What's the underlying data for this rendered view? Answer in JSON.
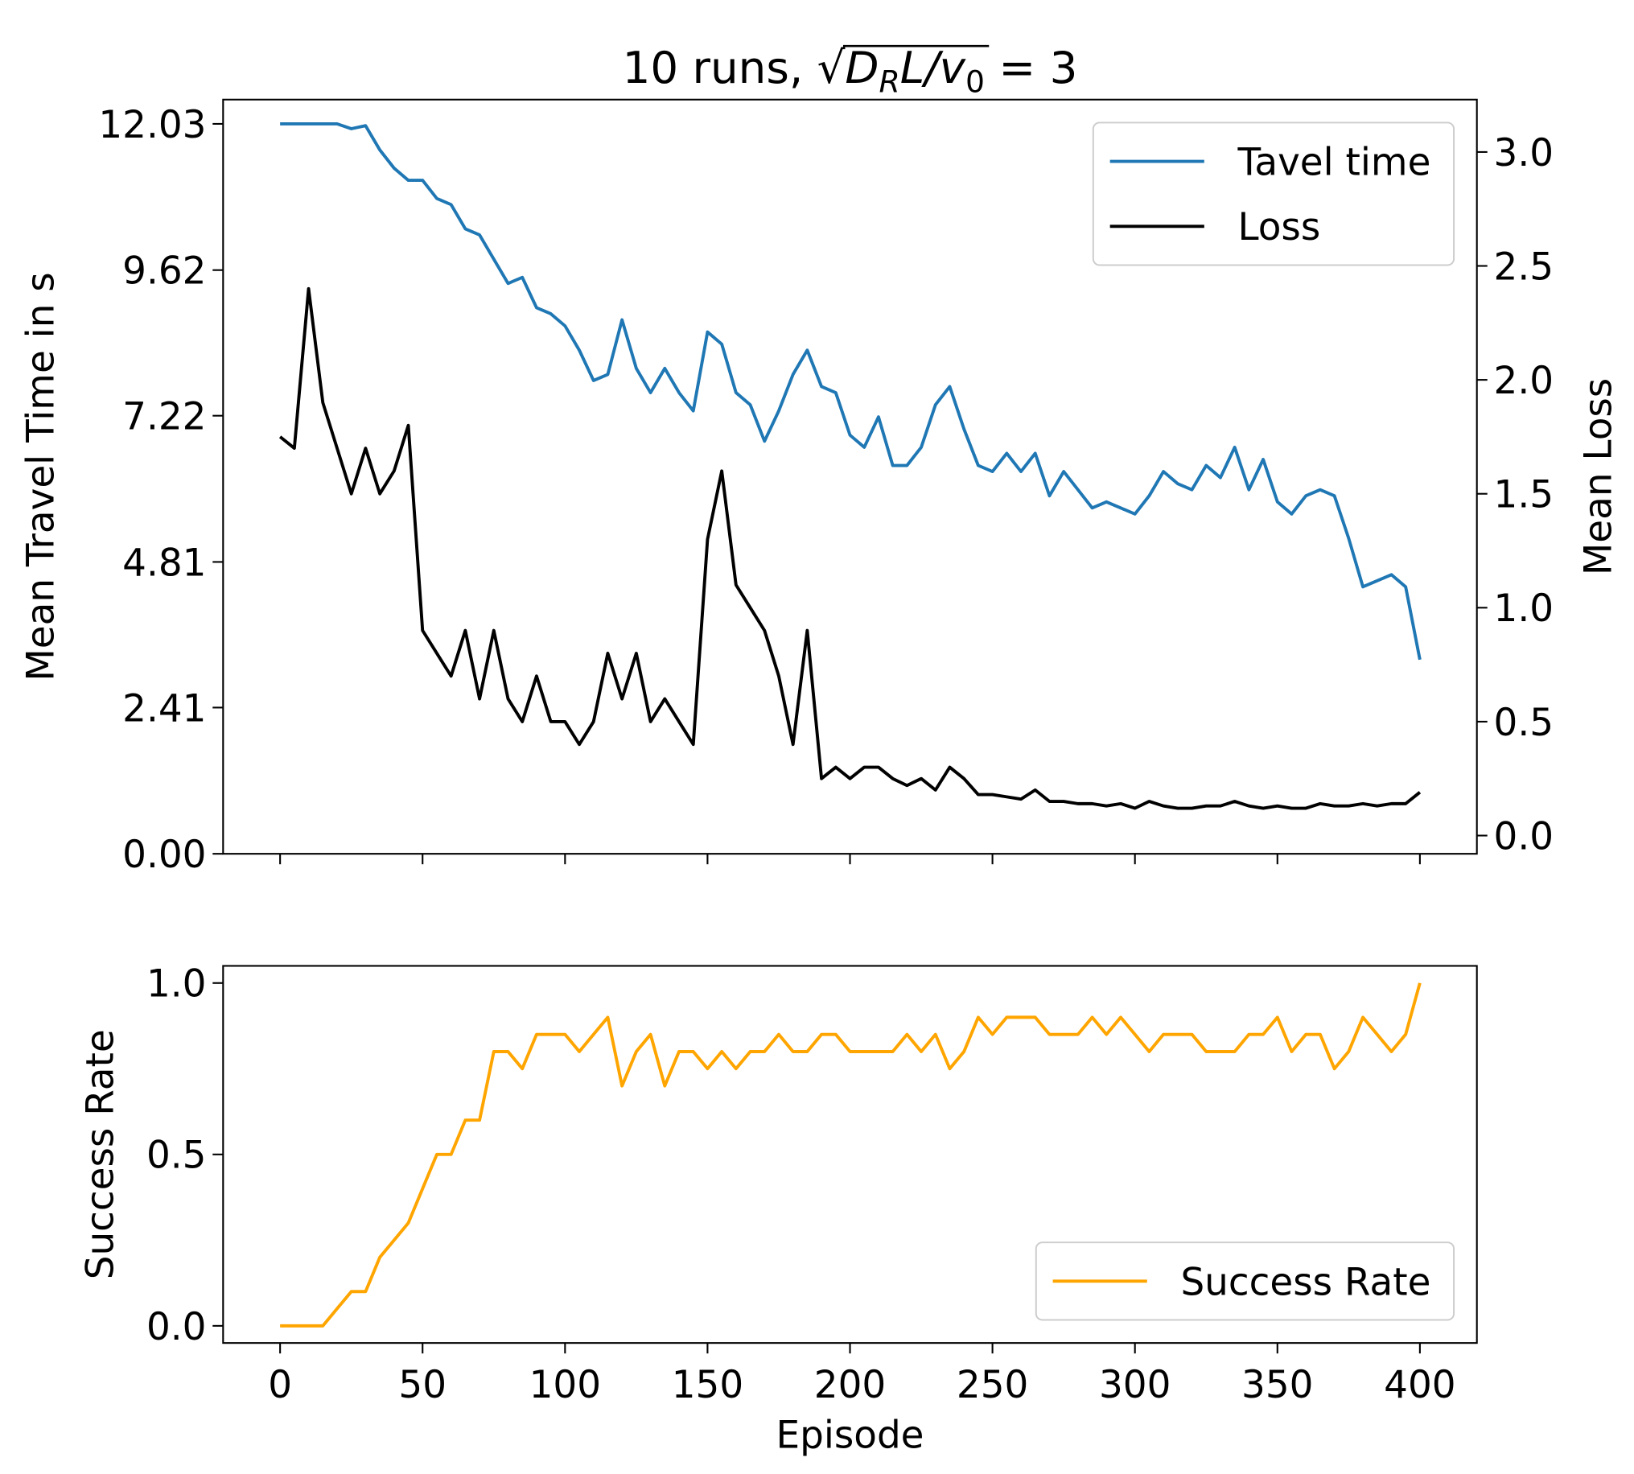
{
  "chart_data": [
    {
      "type": "line",
      "title": [
        "10 runs, ",
        "√",
        "D",
        "R",
        "L/v",
        "0",
        " = 3"
      ],
      "ylabel": "Mean Travel Time in s",
      "y2label": "Mean Loss",
      "x": [
        0,
        5,
        10,
        15,
        20,
        25,
        30,
        35,
        40,
        45,
        50,
        55,
        60,
        65,
        70,
        75,
        80,
        85,
        90,
        95,
        100,
        105,
        110,
        115,
        120,
        125,
        130,
        135,
        140,
        145,
        150,
        155,
        160,
        165,
        170,
        175,
        180,
        185,
        190,
        195,
        200,
        205,
        210,
        215,
        220,
        225,
        230,
        235,
        240,
        245,
        250,
        255,
        260,
        265,
        270,
        275,
        280,
        285,
        290,
        295,
        300,
        305,
        310,
        315,
        320,
        325,
        330,
        335,
        340,
        345,
        350,
        355,
        360,
        365,
        370,
        375,
        380,
        385,
        390,
        395,
        400
      ],
      "series": [
        {
          "name": "Tavel time",
          "color": "#1f77b4",
          "axis": "y",
          "values": [
            12.03,
            12.03,
            12.03,
            12.03,
            12.03,
            11.95,
            12.0,
            11.6,
            11.3,
            11.1,
            11.1,
            10.8,
            10.7,
            10.3,
            10.2,
            9.8,
            9.4,
            9.5,
            9.0,
            8.9,
            8.7,
            8.3,
            7.8,
            7.9,
            8.8,
            8.0,
            7.6,
            8.0,
            7.6,
            7.3,
            8.6,
            8.4,
            7.6,
            7.4,
            6.8,
            7.3,
            7.9,
            8.3,
            7.7,
            7.6,
            6.9,
            6.7,
            7.2,
            6.4,
            6.4,
            6.7,
            7.4,
            7.7,
            7.0,
            6.4,
            6.3,
            6.6,
            6.3,
            6.6,
            5.9,
            6.3,
            6.0,
            5.7,
            5.8,
            5.7,
            5.6,
            5.9,
            6.3,
            6.1,
            6.0,
            6.4,
            6.2,
            6.7,
            6.0,
            6.5,
            5.8,
            5.6,
            5.9,
            6.0,
            5.9,
            5.2,
            4.4,
            4.5,
            4.6,
            4.4,
            3.2
          ]
        },
        {
          "name": "Loss",
          "color": "#000000",
          "axis": "y2",
          "values": [
            1.75,
            1.7,
            2.4,
            1.9,
            1.7,
            1.5,
            1.7,
            1.5,
            1.6,
            1.8,
            0.9,
            0.8,
            0.7,
            0.9,
            0.6,
            0.9,
            0.6,
            0.5,
            0.7,
            0.5,
            0.5,
            0.4,
            0.5,
            0.8,
            0.6,
            0.8,
            0.5,
            0.6,
            0.5,
            0.4,
            1.3,
            1.6,
            1.1,
            1.0,
            0.9,
            0.7,
            0.4,
            0.9,
            0.25,
            0.3,
            0.25,
            0.3,
            0.3,
            0.25,
            0.22,
            0.25,
            0.2,
            0.3,
            0.25,
            0.18,
            0.18,
            0.17,
            0.16,
            0.2,
            0.15,
            0.15,
            0.14,
            0.14,
            0.13,
            0.14,
            0.12,
            0.15,
            0.13,
            0.12,
            0.12,
            0.13,
            0.13,
            0.15,
            0.13,
            0.12,
            0.13,
            0.12,
            0.12,
            0.14,
            0.13,
            0.13,
            0.14,
            0.13,
            0.14,
            0.14,
            0.19
          ]
        }
      ],
      "xlim": [
        -20,
        420
      ],
      "xticks": [
        0,
        50,
        100,
        150,
        200,
        250,
        300,
        350,
        400
      ],
      "ylim": [
        0,
        12.43
      ],
      "yticks": [
        {
          "value": 0,
          "label": "0.00"
        },
        2.41,
        4.81,
        7.22,
        9.62,
        12.03
      ],
      "y2lim": [
        -0.08,
        3.23
      ],
      "y2ticks": [
        {
          "value": 0,
          "label": "0.0"
        },
        0.5,
        {
          "value": 1,
          "label": "1.0"
        },
        1.5,
        {
          "value": 2,
          "label": "2.0"
        },
        2.5,
        {
          "value": 3,
          "label": "3.0"
        }
      ],
      "legend": "upper right"
    },
    {
      "type": "line",
      "ylabel": "Success Rate",
      "xlabel": "Episode",
      "x": [
        0,
        5,
        10,
        15,
        20,
        25,
        30,
        35,
        40,
        45,
        50,
        55,
        60,
        65,
        70,
        75,
        80,
        85,
        90,
        95,
        100,
        105,
        110,
        115,
        120,
        125,
        130,
        135,
        140,
        145,
        150,
        155,
        160,
        165,
        170,
        175,
        180,
        185,
        190,
        195,
        200,
        205,
        210,
        215,
        220,
        225,
        230,
        235,
        240,
        245,
        250,
        255,
        260,
        265,
        270,
        275,
        280,
        285,
        290,
        295,
        300,
        305,
        310,
        315,
        320,
        325,
        330,
        335,
        340,
        345,
        350,
        355,
        360,
        365,
        370,
        375,
        380,
        385,
        390,
        395,
        400
      ],
      "series": [
        {
          "name": "Success Rate",
          "color": "#ffa500",
          "axis": "y",
          "values": [
            0,
            0,
            0,
            0,
            0.05,
            0.1,
            0.1,
            0.2,
            0.25,
            0.3,
            0.4,
            0.5,
            0.5,
            0.6,
            0.6,
            0.8,
            0.8,
            0.75,
            0.85,
            0.85,
            0.85,
            0.8,
            0.85,
            0.9,
            0.7,
            0.8,
            0.85,
            0.7,
            0.8,
            0.8,
            0.75,
            0.8,
            0.75,
            0.8,
            0.8,
            0.85,
            0.8,
            0.8,
            0.85,
            0.85,
            0.8,
            0.8,
            0.8,
            0.8,
            0.85,
            0.8,
            0.85,
            0.75,
            0.8,
            0.9,
            0.85,
            0.9,
            0.9,
            0.9,
            0.85,
            0.85,
            0.85,
            0.9,
            0.85,
            0.9,
            0.85,
            0.8,
            0.85,
            0.85,
            0.85,
            0.8,
            0.8,
            0.8,
            0.85,
            0.85,
            0.9,
            0.8,
            0.85,
            0.85,
            0.75,
            0.8,
            0.9,
            0.85,
            0.8,
            0.85,
            1.0
          ]
        }
      ],
      "xlim": [
        -20,
        420
      ],
      "xticks": [
        0,
        50,
        100,
        150,
        200,
        250,
        300,
        350,
        400
      ],
      "ylim": [
        -0.05,
        1.05
      ],
      "yticks": [
        {
          "value": 0,
          "label": "0.0"
        },
        0.5,
        {
          "value": 1,
          "label": "1.0"
        }
      ],
      "legend": "lower right"
    }
  ]
}
